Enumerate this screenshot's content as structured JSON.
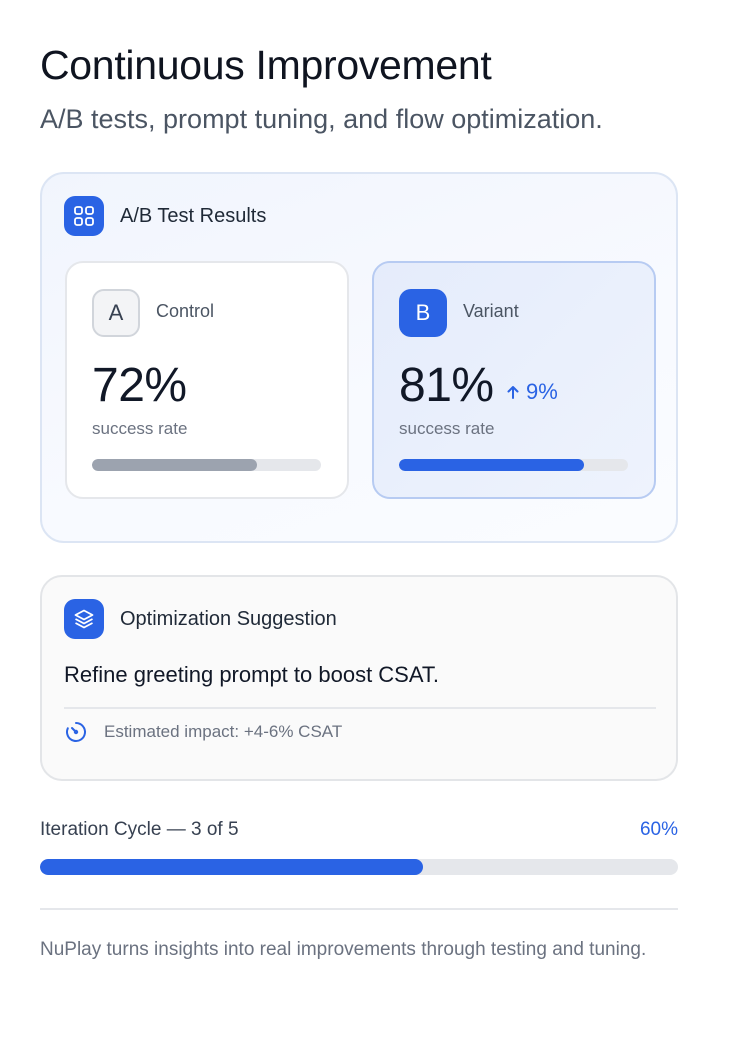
{
  "header": {
    "title": "Continuous Improvement",
    "subtitle": "A/B tests, prompt tuning, and flow optimization."
  },
  "ab_test": {
    "title": "A/B Test Results",
    "icon": "grid-icon",
    "control": {
      "badge": "A",
      "name": "Control",
      "value": "72%",
      "caption": "success rate",
      "progress": 0.72
    },
    "variant": {
      "badge": "B",
      "name": "Variant",
      "value": "81%",
      "delta": "9%",
      "delta_icon": "arrow-up-icon",
      "caption": "success rate",
      "progress": 0.81
    }
  },
  "suggestion": {
    "title": "Optimization Suggestion",
    "icon": "layers-icon",
    "text": "Refine greeting prompt to boost CSAT.",
    "impact_icon": "gauge-icon",
    "impact": "Estimated impact: +4-6% CSAT"
  },
  "iteration": {
    "label": "Iteration Cycle — 3 of 5",
    "percent_label": "60%",
    "progress": 0.6
  },
  "footer": {
    "text": "NuPlay turns insights into real improvements through testing and tuning."
  },
  "colors": {
    "accent": "#2a63e4",
    "control_bar": "#9ca3af",
    "track": "#e5e7eb"
  }
}
